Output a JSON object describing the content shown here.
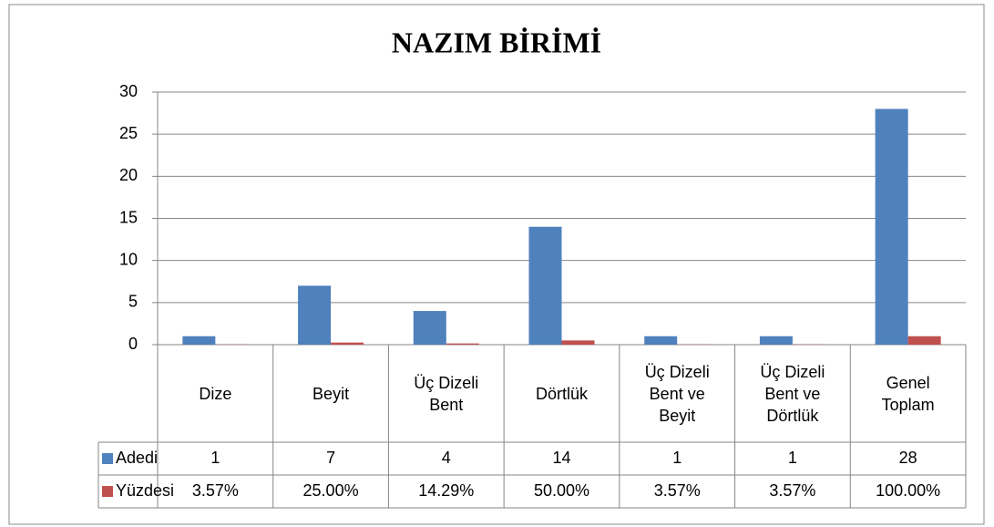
{
  "chart_data": {
    "type": "bar",
    "title": "NAZIM BİRİMİ",
    "categories": [
      "Dize",
      "Beyit",
      "Üç Dizeli Bent",
      "Dörtlük",
      "Üç Dizeli Bent ve Beyit",
      "Üç Dizeli Bent ve Dörtlük",
      "Genel Toplam"
    ],
    "series": [
      {
        "name": "Adedi",
        "color": "#4f81bd",
        "values": [
          1,
          7,
          4,
          14,
          1,
          1,
          28
        ]
      },
      {
        "name": "Yüzdesi",
        "color": "#c0504d",
        "values": [
          0.0357,
          0.25,
          0.1429,
          0.5,
          0.0357,
          0.0357,
          1
        ],
        "value_labels": [
          "3.57%",
          "25.00%",
          "14.29%",
          "50.00%",
          "3.57%",
          "3.57%",
          "100.00%"
        ]
      }
    ],
    "ylim": [
      0,
      30
    ],
    "yticks": [
      0,
      5,
      10,
      15,
      20,
      25,
      30
    ],
    "grid": true,
    "legend": "data-table"
  }
}
